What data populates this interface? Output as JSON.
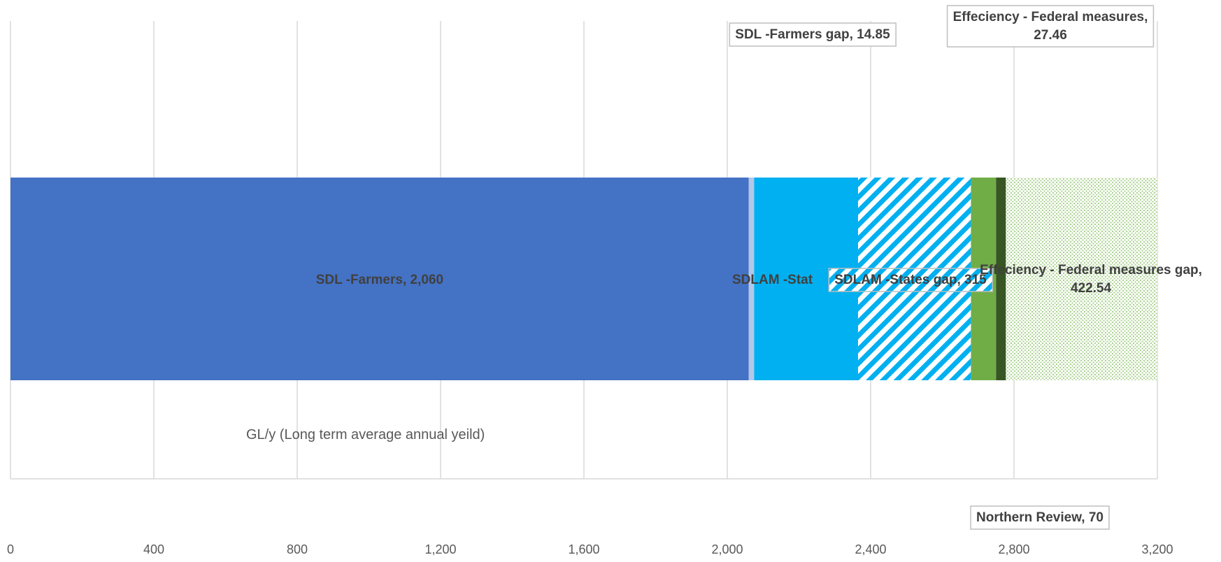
{
  "chart_data": {
    "type": "bar",
    "orientation": "horizontal",
    "stacked": true,
    "xlabel": "GL/y (Long term average annual yeild)",
    "xlim": [
      0,
      3200
    ],
    "xticks": [
      0,
      400,
      800,
      1200,
      1600,
      2000,
      2400,
      2800,
      3200
    ],
    "xtick_labels": [
      "0",
      "400",
      "800",
      "1,200",
      "1,600",
      "2,000",
      "2,400",
      "2,800",
      "3,200"
    ],
    "grid": true,
    "colors": {
      "farmers": "#4472c4",
      "farmers_gap": "#b4c7e7",
      "states": "#00b0f0",
      "states_gap": "#00b0f0",
      "northern": "#70ad47",
      "federal": "#375623",
      "federal_gap": "#a9d18e"
    },
    "series": [
      {
        "name": "SDL -Farmers",
        "value": 2060,
        "label": "SDL -Farmers, 2,060",
        "fill": "solid",
        "color": "#4472c4"
      },
      {
        "name": "SDL -Farmers gap",
        "value": 14.85,
        "label": "SDL -Farmers gap, 14.85",
        "fill": "solid",
        "color": "#b4c7e7"
      },
      {
        "name": "SDLAM -States",
        "value": 290,
        "label": "SDLAM -Stat",
        "fill": "solid",
        "color": "#00b0f0"
      },
      {
        "name": "SDLAM -States gap",
        "value": 315,
        "label": "SDLAM -States gap, 315",
        "fill": "stripes",
        "color": "#00b0f0"
      },
      {
        "name": "Northern Review",
        "value": 70,
        "label": "Northern Review, 70",
        "fill": "solid",
        "color": "#70ad47"
      },
      {
        "name": "Effeciency - Federal measures",
        "value": 27.46,
        "label": "Effeciency - Federal measures, 27.46",
        "fill": "solid",
        "color": "#375623"
      },
      {
        "name": "Effeciency - Federal measures gap",
        "value": 422.54,
        "label": "Effeciency - Federal measures gap, 422.54",
        "fill": "dots",
        "color": "#a9d18e"
      }
    ]
  }
}
